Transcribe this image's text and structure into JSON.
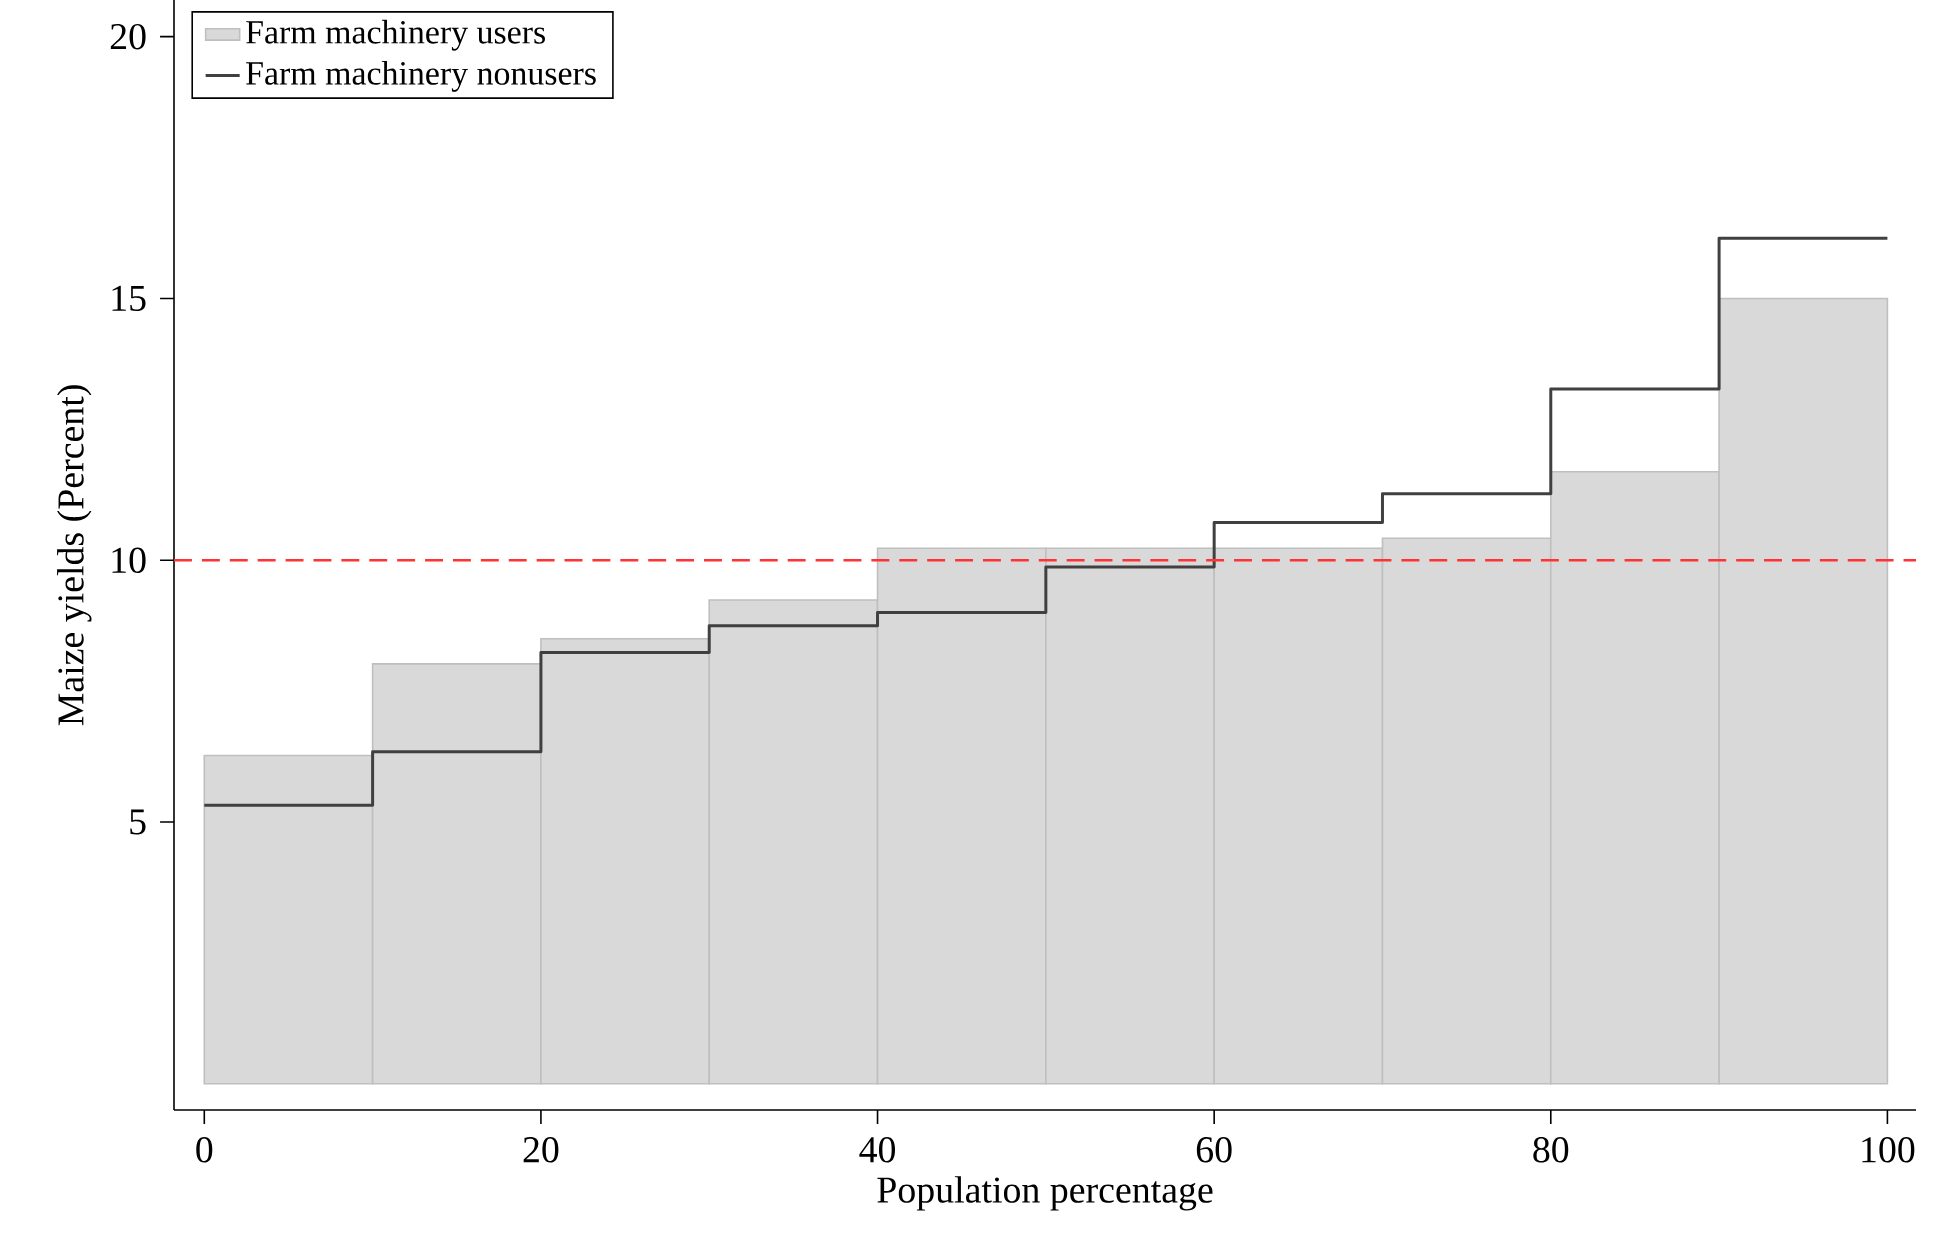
{
  "chart_data": {
    "type": "histogram",
    "xlabel": "Population percentage",
    "ylabel": "Maize yields (Percent)",
    "bins": [
      0,
      10,
      20,
      30,
      40,
      50,
      60,
      70,
      80,
      90,
      100
    ],
    "series": [
      {
        "name": "Farm machinery users",
        "color": "#d9d9d9",
        "values": [
          6.27,
          8.02,
          8.5,
          9.24,
          10.23,
          10.23,
          10.23,
          10.42,
          11.69,
          15.0
        ]
      },
      {
        "name": "Farm machinery nonusers",
        "type": "step",
        "color": "#404040",
        "x": [
          0,
          10,
          20,
          30,
          40,
          50,
          60,
          70,
          80,
          90,
          100
        ],
        "values": [
          5.32,
          6.34,
          8.24,
          8.75,
          9.0,
          9.87,
          10.72,
          11.27,
          13.27,
          16.15,
          16.15
        ]
      }
    ],
    "xlim": [
      -1.8,
      101.7
    ],
    "ylim": [
      -0.5,
      20.7
    ],
    "xticks": [
      0,
      20,
      40,
      60,
      80,
      100
    ],
    "yticks": [
      5,
      10,
      15,
      20
    ],
    "ref_lines": [
      {
        "axis": "y",
        "value": 10,
        "color": "#ff3333",
        "line_style": "dashed"
      }
    ],
    "legend": "top left",
    "grid": false
  }
}
